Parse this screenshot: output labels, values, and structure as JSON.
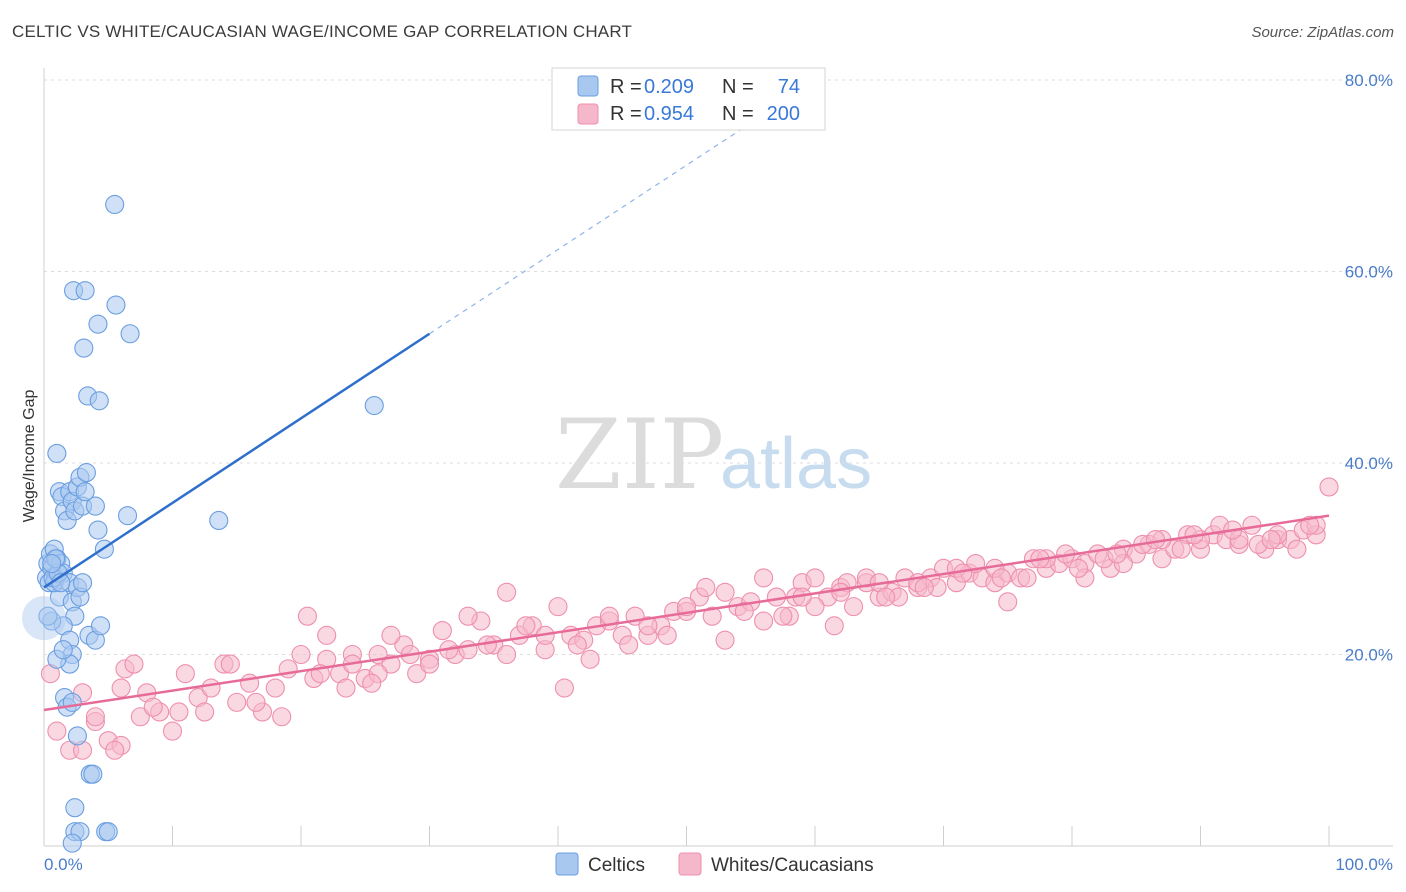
{
  "header": {
    "title": "CELTIC VS WHITE/CAUCASIAN WAGE/INCOME GAP CORRELATION CHART",
    "source": "Source: ZipAtlas.com"
  },
  "watermark": {
    "zip": "ZIP",
    "atlas": "atlas"
  },
  "legend": {
    "rows": [
      {
        "r_label": "R =",
        "r_value": "0.209",
        "n_label": "N =",
        "n_value": "74",
        "color": "#a9c8f0"
      },
      {
        "r_label": "R =",
        "r_value": "0.954",
        "n_label": "N =",
        "n_value": "200",
        "color": "#f5b8cb"
      }
    ]
  },
  "bottom_legend": {
    "items": [
      {
        "label": "Celtics",
        "color": "#a9c8f0"
      },
      {
        "label": "Whites/Caucasians",
        "color": "#f5b8cb"
      }
    ]
  },
  "chart_data": {
    "type": "scatter",
    "title": "CELTIC VS WHITE/CAUCASIAN WAGE/INCOME GAP CORRELATION CHART",
    "xlabel": "",
    "ylabel": "Wage/Income Gap",
    "xlim": [
      0,
      100
    ],
    "ylim": [
      0,
      80
    ],
    "x_tick_labels": [
      "0.0%",
      "100.0%"
    ],
    "y_ticks": [
      20,
      40,
      60,
      80
    ],
    "y_tick_labels": [
      "20.0%",
      "40.0%",
      "60.0%",
      "80.0%"
    ],
    "grid": true,
    "series": [
      {
        "name": "Celtics",
        "color": "#a9c8f0",
        "stroke": "#6a9ee0",
        "line_color": "#2f6fcc",
        "trend": {
          "x0": 0,
          "y0": 27.0,
          "x1": 30,
          "y1": 53.5,
          "dash_to_x": 55,
          "dash_to_y": 75.5
        },
        "points": [
          [
            0.2,
            28
          ],
          [
            0.3,
            29.5
          ],
          [
            0.4,
            27.5
          ],
          [
            0.5,
            30.5
          ],
          [
            0.6,
            29
          ],
          [
            0.8,
            31
          ],
          [
            0.9,
            28
          ],
          [
            1.0,
            30
          ],
          [
            1.2,
            26
          ],
          [
            1.3,
            29.5
          ],
          [
            1.5,
            28.5
          ],
          [
            0.8,
            27.5
          ],
          [
            1.0,
            41
          ],
          [
            1.2,
            37
          ],
          [
            1.4,
            36.5
          ],
          [
            1.6,
            35
          ],
          [
            1.8,
            34
          ],
          [
            2.0,
            37
          ],
          [
            2.2,
            36
          ],
          [
            2.4,
            35
          ],
          [
            2.6,
            37.5
          ],
          [
            2.8,
            38.5
          ],
          [
            3.0,
            35.5
          ],
          [
            3.2,
            37
          ],
          [
            2.0,
            27.5
          ],
          [
            2.2,
            25.5
          ],
          [
            2.4,
            24
          ],
          [
            2.6,
            27
          ],
          [
            2.8,
            26
          ],
          [
            3.0,
            27.5
          ],
          [
            1.5,
            23
          ],
          [
            2.0,
            21.5
          ],
          [
            2.2,
            20
          ],
          [
            2.0,
            19
          ],
          [
            1.6,
            15.5
          ],
          [
            1.8,
            14.5
          ],
          [
            2.2,
            15
          ],
          [
            2.6,
            11.5
          ],
          [
            3.5,
            22
          ],
          [
            4.0,
            21.5
          ],
          [
            4.4,
            23
          ],
          [
            4.2,
            33
          ],
          [
            4.7,
            31
          ],
          [
            4.0,
            35.5
          ],
          [
            3.6,
            7.5
          ],
          [
            3.8,
            7.5
          ],
          [
            2.4,
            4
          ],
          [
            2.4,
            1.5
          ],
          [
            2.8,
            1.5
          ],
          [
            4.8,
            1.5
          ],
          [
            5.0,
            1.5
          ],
          [
            2.2,
            0.3
          ],
          [
            1.0,
            19.5
          ],
          [
            0.6,
            23.5
          ],
          [
            0.7,
            28
          ],
          [
            1.1,
            28.5
          ],
          [
            1.3,
            27.5
          ],
          [
            0.9,
            30
          ],
          [
            5.5,
            67
          ],
          [
            2.3,
            58
          ],
          [
            3.2,
            58
          ],
          [
            5.6,
            56.5
          ],
          [
            4.2,
            54.5
          ],
          [
            6.7,
            53.5
          ],
          [
            3.1,
            52
          ],
          [
            3.4,
            47
          ],
          [
            4.3,
            46.5
          ],
          [
            25.7,
            46
          ],
          [
            6.5,
            34.5
          ],
          [
            13.6,
            34
          ],
          [
            0.3,
            24
          ],
          [
            1.5,
            20.5
          ],
          [
            3.3,
            39
          ],
          [
            0.6,
            29.5
          ]
        ]
      },
      {
        "name": "Whites/Caucasians",
        "color": "#f5b8cb",
        "stroke": "#ee8fae",
        "line_color": "#e76b98",
        "trend": {
          "x0": 0,
          "y0": 14.2,
          "x1": 100,
          "y1": 34.5
        },
        "points": [
          [
            0.5,
            18
          ],
          [
            1,
            12
          ],
          [
            2,
            10
          ],
          [
            3,
            16
          ],
          [
            4,
            13
          ],
          [
            5,
            11
          ],
          [
            6,
            10.5
          ],
          [
            6.3,
            18.5
          ],
          [
            7.5,
            13.5
          ],
          [
            8,
            16
          ],
          [
            9,
            14
          ],
          [
            10,
            12
          ],
          [
            11,
            18
          ],
          [
            12,
            15.5
          ],
          [
            13,
            16.5
          ],
          [
            14,
            19
          ],
          [
            15,
            15
          ],
          [
            16,
            17
          ],
          [
            17,
            14
          ],
          [
            18,
            16.5
          ],
          [
            19,
            18.5
          ],
          [
            20,
            20
          ],
          [
            21,
            17.5
          ],
          [
            22,
            19.5
          ],
          [
            23,
            18
          ],
          [
            24,
            20
          ],
          [
            25,
            17.5
          ],
          [
            26,
            20
          ],
          [
            27,
            19
          ],
          [
            28,
            21
          ],
          [
            29,
            18
          ],
          [
            30,
            19.5
          ],
          [
            31,
            22.5
          ],
          [
            32,
            20
          ],
          [
            33,
            20.5
          ],
          [
            34,
            23.5
          ],
          [
            35,
            21
          ],
          [
            36,
            20
          ],
          [
            37,
            22
          ],
          [
            38,
            23
          ],
          [
            39,
            20.5
          ],
          [
            40,
            25
          ],
          [
            41,
            22
          ],
          [
            42,
            21.5
          ],
          [
            43,
            23
          ],
          [
            44,
            23.5
          ],
          [
            45,
            22
          ],
          [
            46,
            24
          ],
          [
            47,
            22
          ],
          [
            48,
            23
          ],
          [
            49,
            24.5
          ],
          [
            50,
            24.5
          ],
          [
            51,
            26
          ],
          [
            52,
            24
          ],
          [
            53,
            26.5
          ],
          [
            54,
            25
          ],
          [
            55,
            25.5
          ],
          [
            56,
            23.5
          ],
          [
            57,
            26
          ],
          [
            58,
            24
          ],
          [
            59,
            27.5
          ],
          [
            60,
            28
          ],
          [
            61,
            26
          ],
          [
            62,
            27
          ],
          [
            63,
            25
          ],
          [
            64,
            27.5
          ],
          [
            65,
            26
          ],
          [
            66,
            26.5
          ],
          [
            67,
            28
          ],
          [
            68,
            27
          ],
          [
            69,
            28
          ],
          [
            70,
            29
          ],
          [
            71,
            27.5
          ],
          [
            72,
            28.5
          ],
          [
            73,
            28
          ],
          [
            74,
            27.5
          ],
          [
            75,
            28.5
          ],
          [
            76,
            28
          ],
          [
            77,
            30
          ],
          [
            78,
            29
          ],
          [
            79,
            29.5
          ],
          [
            80,
            30
          ],
          [
            81,
            29.5
          ],
          [
            82,
            30.5
          ],
          [
            83,
            29
          ],
          [
            84,
            31
          ],
          [
            85,
            30.5
          ],
          [
            86,
            31.5
          ],
          [
            87,
            30
          ],
          [
            88,
            31
          ],
          [
            89,
            32.5
          ],
          [
            90,
            31
          ],
          [
            91,
            32.5
          ],
          [
            92,
            32
          ],
          [
            93,
            31.5
          ],
          [
            94,
            33.5
          ],
          [
            95,
            31
          ],
          [
            96,
            32
          ],
          [
            97,
            32
          ],
          [
            98,
            33
          ],
          [
            99,
            32.5
          ],
          [
            100,
            37.5
          ],
          [
            3,
            10
          ],
          [
            5.5,
            10
          ],
          [
            4,
            13.5
          ],
          [
            8.5,
            14.5
          ],
          [
            10.5,
            14
          ],
          [
            12.5,
            14
          ],
          [
            14.5,
            19
          ],
          [
            16.5,
            15
          ],
          [
            18.5,
            13.5
          ],
          [
            20.5,
            24
          ],
          [
            22,
            22
          ],
          [
            24,
            19
          ],
          [
            26,
            18
          ],
          [
            27,
            22
          ],
          [
            28.5,
            20
          ],
          [
            30,
            19
          ],
          [
            31.5,
            20.5
          ],
          [
            33,
            24
          ],
          [
            34.5,
            21
          ],
          [
            36,
            26.5
          ],
          [
            37.5,
            23
          ],
          [
            39,
            22
          ],
          [
            40.5,
            16.5
          ],
          [
            41.5,
            21
          ],
          [
            42.5,
            19.5
          ],
          [
            44,
            24
          ],
          [
            45.5,
            21
          ],
          [
            47,
            23
          ],
          [
            48.5,
            22
          ],
          [
            50,
            25
          ],
          [
            51.5,
            27
          ],
          [
            53,
            21.5
          ],
          [
            54.5,
            24.5
          ],
          [
            56,
            28
          ],
          [
            57.5,
            24
          ],
          [
            58.5,
            26
          ],
          [
            60,
            25
          ],
          [
            61.5,
            23
          ],
          [
            62.5,
            27.5
          ],
          [
            64,
            28
          ],
          [
            65,
            27.5
          ],
          [
            66.5,
            26
          ],
          [
            68,
            27.5
          ],
          [
            69.5,
            27
          ],
          [
            71,
            29
          ],
          [
            72.5,
            29.5
          ],
          [
            74,
            29
          ],
          [
            75,
            25.5
          ],
          [
            76.5,
            28
          ],
          [
            78,
            30
          ],
          [
            79.5,
            30.5
          ],
          [
            81,
            28
          ],
          [
            82.5,
            30
          ],
          [
            84,
            29.5
          ],
          [
            85.5,
            31.5
          ],
          [
            87,
            32
          ],
          [
            88.5,
            31
          ],
          [
            90,
            32
          ],
          [
            91.5,
            33.5
          ],
          [
            93,
            32
          ],
          [
            94.5,
            31.5
          ],
          [
            96,
            32.5
          ],
          [
            97.5,
            31
          ],
          [
            99,
            33.5
          ],
          [
            98.5,
            33.5
          ],
          [
            95.5,
            32
          ],
          [
            92.5,
            33
          ],
          [
            89.5,
            32.5
          ],
          [
            86.5,
            32
          ],
          [
            83.5,
            30.5
          ],
          [
            80.5,
            29
          ],
          [
            77.5,
            30
          ],
          [
            74.5,
            28
          ],
          [
            71.5,
            28.5
          ],
          [
            68.5,
            27
          ],
          [
            65.5,
            26
          ],
          [
            62,
            26.5
          ],
          [
            59,
            26
          ],
          [
            21.5,
            18
          ],
          [
            23.5,
            16.5
          ],
          [
            25.5,
            17
          ],
          [
            6,
            16.5
          ],
          [
            7,
            19
          ]
        ]
      }
    ]
  }
}
